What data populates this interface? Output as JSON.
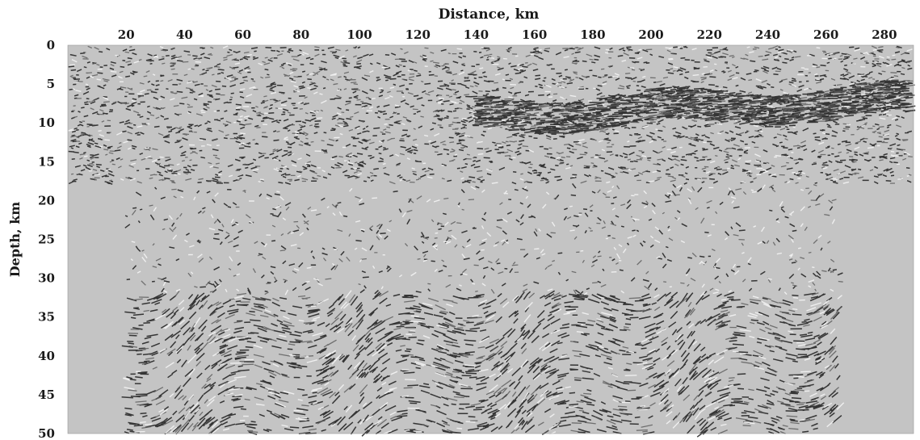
{
  "chart_data": {
    "type": "heatmap",
    "subtype": "seismic-migrated-depth-section",
    "title": "",
    "xlabel": "Distance, km",
    "ylabel": "Depth, km",
    "x_axis_position": "top",
    "xlim": [
      0,
      290
    ],
    "ylim": [
      0,
      50
    ],
    "y_inverted": true,
    "x_ticks": [
      20,
      40,
      60,
      80,
      100,
      120,
      140,
      160,
      180,
      200,
      220,
      240,
      260,
      280
    ],
    "y_ticks": [
      0,
      5,
      10,
      15,
      20,
      25,
      30,
      35,
      40,
      45,
      50
    ],
    "grid": false,
    "legend": "none",
    "colormap": "grayscale wiggle (black = strong reflectivity, gray = no signal)",
    "regions": [
      {
        "kind": "shallow-dense-reflections",
        "x": [
          0,
          290
        ],
        "depth": [
          0,
          18
        ]
      },
      {
        "kind": "strong-reflector-band",
        "x": [
          140,
          290
        ],
        "depth": [
          6,
          12
        ]
      },
      {
        "kind": "sparse-migration-arcs",
        "x": [
          20,
          265
        ],
        "depth": [
          18,
          32
        ]
      },
      {
        "kind": "deep-reflective-lower-crust",
        "x": [
          20,
          265
        ],
        "depth": [
          32,
          50
        ]
      }
    ]
  },
  "colors": {
    "background": "#c4c4c4",
    "reflection": "#1c1c1c",
    "highlight": "#f4f4f4",
    "text": "#1a1a1a"
  }
}
